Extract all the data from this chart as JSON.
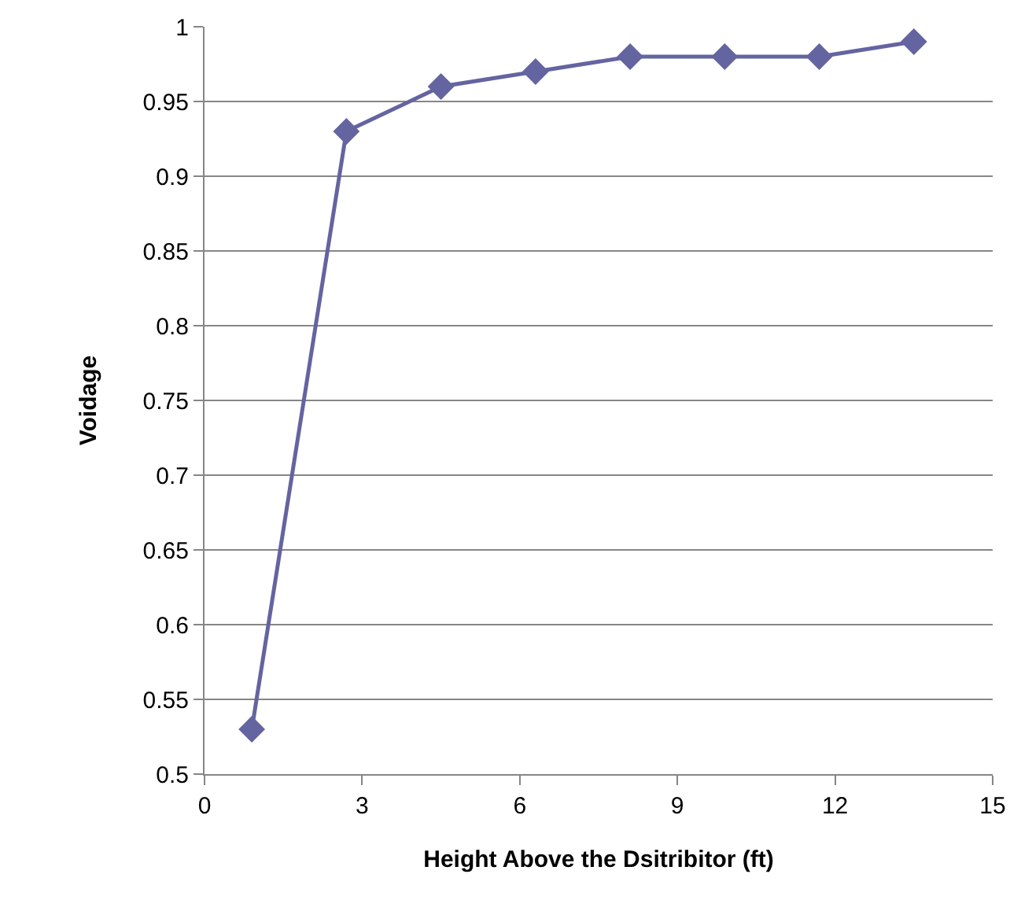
{
  "chart_data": {
    "type": "line",
    "xlabel": "Height Above the Dsitribitor (ft)",
    "ylabel": "Voidage",
    "x": [
      0.9,
      2.7,
      4.5,
      6.3,
      8.1,
      9.9,
      11.7,
      13.5
    ],
    "series": [
      {
        "color": "#6464a0",
        "values": [
          0.53,
          0.93,
          0.96,
          0.97,
          0.98,
          0.98,
          0.98,
          0.99
        ]
      }
    ],
    "xlim": [
      0,
      15
    ],
    "xticks": [
      0,
      3,
      6,
      9,
      12,
      15
    ],
    "ylim": [
      0.5,
      1
    ],
    "yticks": [
      0.5,
      0.55,
      0.6,
      0.65,
      0.7,
      0.75,
      0.8,
      0.85,
      0.9,
      0.95,
      1
    ],
    "grid": "y",
    "legend": false,
    "marker": "diamond",
    "line_style": "solid"
  }
}
